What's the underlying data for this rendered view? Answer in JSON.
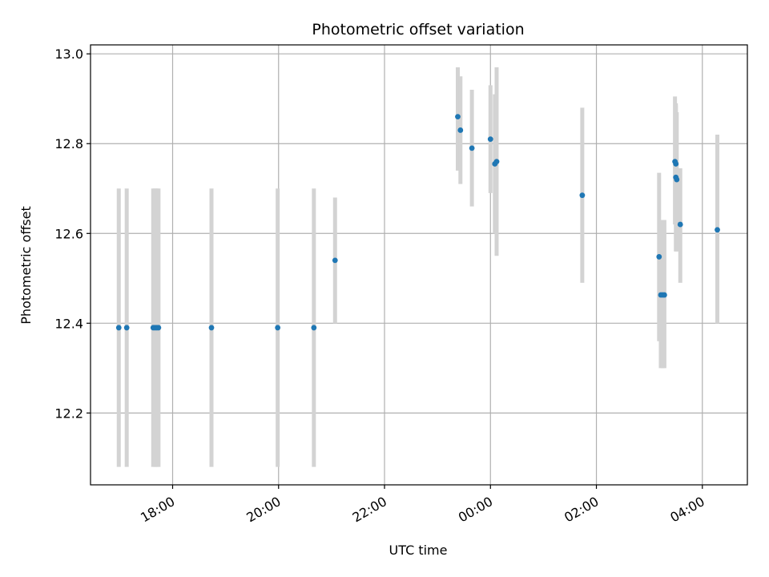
{
  "chart_data": {
    "type": "scatter",
    "title": "Photometric offset variation",
    "xlabel": "UTC time",
    "ylabel": "Photometric offset",
    "x_axis_type": "time",
    "start_date": "2000-01-01",
    "xlim": [
      "16:27",
      "04:51"
    ],
    "ylim": [
      12.04,
      13.02
    ],
    "x_ticks": [
      "18:00",
      "20:00",
      "22:00",
      "00:00",
      "02:00",
      "04:00"
    ],
    "y_ticks": [
      12.2,
      12.4,
      12.6,
      12.8,
      13.0
    ],
    "y_tick_labels": [
      "12.2",
      "12.4",
      "12.6",
      "12.8",
      "13.0"
    ],
    "grid": true,
    "colors": {
      "marker": "#1f77b4",
      "errorbar": "#d3d3d3",
      "grid": "#b0b0b0"
    },
    "points": [
      {
        "x": "16:59",
        "y": 12.39,
        "ylo": 12.08,
        "yhi": 12.7
      },
      {
        "x": "17:08",
        "y": 12.39,
        "ylo": 12.08,
        "yhi": 12.7
      },
      {
        "x": "17:38",
        "y": 12.39,
        "ylo": 12.08,
        "yhi": 12.7
      },
      {
        "x": "17:40",
        "y": 12.39,
        "ylo": 12.08,
        "yhi": 12.7
      },
      {
        "x": "17:42",
        "y": 12.39,
        "ylo": 12.08,
        "yhi": 12.7
      },
      {
        "x": "17:44",
        "y": 12.39,
        "ylo": 12.08,
        "yhi": 12.7
      },
      {
        "x": "18:44",
        "y": 12.39,
        "ylo": 12.08,
        "yhi": 12.7
      },
      {
        "x": "19:59",
        "y": 12.39,
        "ylo": 12.08,
        "yhi": 12.7
      },
      {
        "x": "20:40",
        "y": 12.39,
        "ylo": 12.08,
        "yhi": 12.7
      },
      {
        "x": "21:04",
        "y": 12.54,
        "ylo": 12.4,
        "yhi": 12.68
      },
      {
        "x": "23:23",
        "y": 12.86,
        "ylo": 12.74,
        "yhi": 12.97
      },
      {
        "x": "23:26",
        "y": 12.83,
        "ylo": 12.71,
        "yhi": 12.95
      },
      {
        "x": "23:39",
        "y": 12.79,
        "ylo": 12.66,
        "yhi": 12.92
      },
      {
        "x": "00:00",
        "y": 12.81,
        "ylo": 12.69,
        "yhi": 12.93
      },
      {
        "x": "00:05",
        "y": 12.755,
        "ylo": 12.6,
        "yhi": 12.91
      },
      {
        "x": "00:07",
        "y": 12.76,
        "ylo": 12.55,
        "yhi": 12.97
      },
      {
        "x": "01:44",
        "y": 12.685,
        "ylo": 12.49,
        "yhi": 12.88
      },
      {
        "x": "03:11",
        "y": 12.548,
        "ylo": 12.36,
        "yhi": 12.735
      },
      {
        "x": "03:13",
        "y": 12.463,
        "ylo": 12.3,
        "yhi": 12.63
      },
      {
        "x": "03:15",
        "y": 12.463,
        "ylo": 12.3,
        "yhi": 12.63
      },
      {
        "x": "03:17",
        "y": 12.463,
        "ylo": 12.3,
        "yhi": 12.63
      },
      {
        "x": "03:29",
        "y": 12.76,
        "ylo": 12.62,
        "yhi": 12.905
      },
      {
        "x": "03:30",
        "y": 12.755,
        "ylo": 12.63,
        "yhi": 12.89
      },
      {
        "x": "03:30",
        "y": 12.725,
        "ylo": 12.56,
        "yhi": 12.885
      },
      {
        "x": "03:31",
        "y": 12.72,
        "ylo": 12.56,
        "yhi": 12.87
      },
      {
        "x": "03:35",
        "y": 12.62,
        "ylo": 12.49,
        "yhi": 12.745
      },
      {
        "x": "04:17",
        "y": 12.608,
        "ylo": 12.4,
        "yhi": 12.82
      }
    ]
  }
}
